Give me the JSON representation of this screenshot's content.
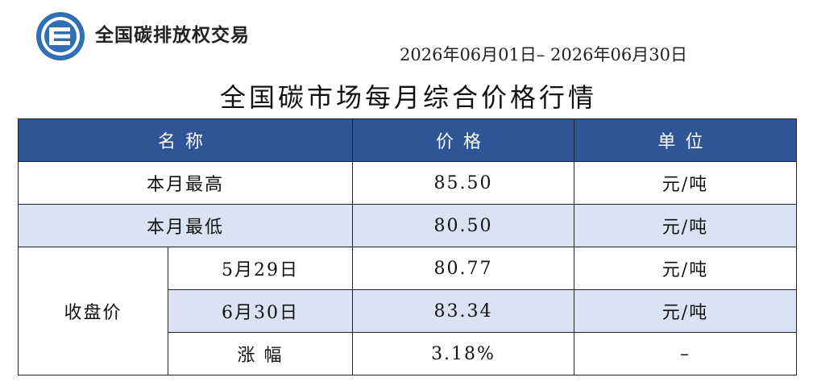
{
  "header": {
    "brand": "全国碳排放权交易",
    "logo_icon": "exchange-logo-icon",
    "date_range": "2026年06月01日– 2026年06月30日"
  },
  "title": "全国碳市场每月综合价格行情",
  "colors": {
    "header_bg": "#2f5597",
    "shaded_row": "#dae3f3",
    "logo_blue": "#2f6fb5"
  },
  "table": {
    "headers": {
      "name": "名称",
      "price": "价格",
      "unit": "单位"
    },
    "rows": [
      {
        "name": "本月最高",
        "price": "85.50",
        "unit": "元/吨"
      },
      {
        "name": "本月最低",
        "price": "80.50",
        "unit": "元/吨"
      }
    ],
    "closing": {
      "group_label": "收盘价",
      "rows": [
        {
          "date": "5月29日",
          "price": "80.77",
          "unit": "元/吨"
        },
        {
          "date": "6月30日",
          "price": "83.34",
          "unit": "元/吨"
        },
        {
          "date": "涨 幅",
          "price": "3.18%",
          "unit": "–"
        }
      ]
    }
  }
}
